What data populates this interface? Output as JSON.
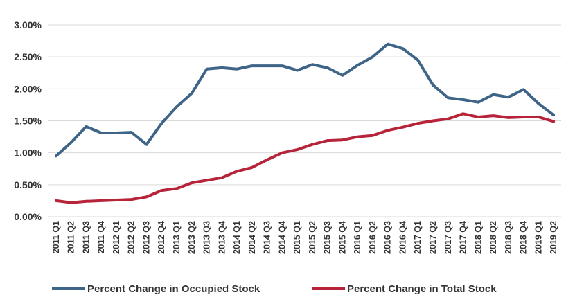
{
  "chart_data": {
    "type": "line",
    "categories": [
      "2011 Q1",
      "2011 Q2",
      "2011 Q3",
      "2011 Q4",
      "2012 Q1",
      "2012 Q2",
      "2012 Q3",
      "2012 Q4",
      "2013 Q1",
      "2013 Q2",
      "2013 Q3",
      "2013 Q4",
      "2014 Q1",
      "2014 Q2",
      "2014 Q3",
      "2014 Q4",
      "2015 Q1",
      "2015 Q2",
      "2015 Q3",
      "2015 Q4",
      "2016 Q1",
      "2016 Q2",
      "2016 Q3",
      "2016 Q4",
      "2017 Q1",
      "2017 Q2",
      "2017 Q3",
      "2017 Q4",
      "2018 Q1",
      "2018 Q2",
      "2018 Q3",
      "2018 Q4",
      "2019 Q1",
      "2019 Q2"
    ],
    "series": [
      {
        "name": "Percent Change in Occupied Stock",
        "color": "#3e6488",
        "values": [
          0.95,
          1.16,
          1.41,
          1.31,
          1.31,
          1.32,
          1.13,
          1.46,
          1.72,
          1.93,
          2.31,
          2.33,
          2.31,
          2.36,
          2.36,
          2.36,
          2.29,
          2.38,
          2.33,
          2.21,
          2.37,
          2.5,
          2.7,
          2.63,
          2.45,
          2.06,
          1.86,
          1.83,
          1.79,
          1.91,
          1.87,
          1.99,
          1.77,
          1.59
        ]
      },
      {
        "name": "Percent Change in Total Stock",
        "color": "#b7243a",
        "values": [
          0.25,
          0.22,
          0.24,
          0.25,
          0.26,
          0.27,
          0.31,
          0.41,
          0.44,
          0.53,
          0.57,
          0.61,
          0.71,
          0.77,
          0.89,
          1.0,
          1.05,
          1.13,
          1.19,
          1.2,
          1.25,
          1.27,
          1.35,
          1.4,
          1.46,
          1.5,
          1.53,
          1.61,
          1.56,
          1.58,
          1.55,
          1.56,
          1.56,
          1.49
        ]
      }
    ],
    "ylim": [
      0,
      3.0
    ],
    "yticks": [
      "0.00%",
      "0.50%",
      "1.00%",
      "1.50%",
      "2.00%",
      "2.50%",
      "3.00%"
    ],
    "grid": true,
    "legend_position": "bottom",
    "title": "",
    "xlabel": "",
    "ylabel": ""
  }
}
